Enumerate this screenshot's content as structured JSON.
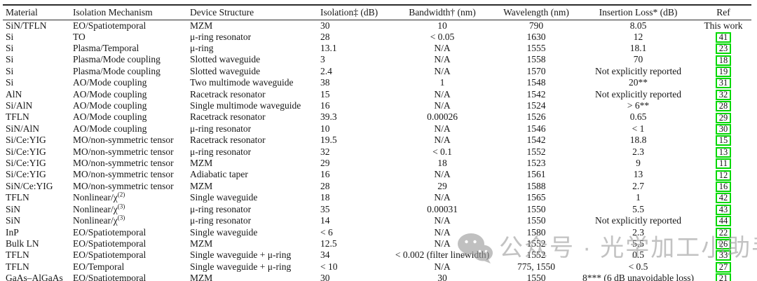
{
  "watermark": {
    "icon": "wechat-icon",
    "text": "公众号 · 光学加工小助手",
    "color": "#9d9d9d"
  },
  "table": {
    "ref_box_color": "#00d800",
    "columns": [
      "Material",
      "Isolation Mechanism",
      "Device Structure",
      "Isolation‡ (dB)",
      "Bandwidth† (nm)",
      "Wavelength (nm)",
      "Insertion Loss* (dB)",
      "Ref"
    ],
    "rows": [
      {
        "material": "SiN/TFLN",
        "mechanism": "EO/Spatiotemporal",
        "structure": "MZM",
        "isolation": "30",
        "bandwidth": "10",
        "wavelength": "790",
        "loss": "8.05",
        "ref": "This work",
        "ref_boxed": false
      },
      {
        "material": "Si",
        "mechanism": "TO",
        "structure": "μ-ring resonator",
        "isolation": "28",
        "bandwidth": "< 0.05",
        "wavelength": "1630",
        "loss": "12",
        "ref": "41",
        "ref_boxed": true
      },
      {
        "material": "Si",
        "mechanism": "Plasma/Temporal",
        "structure": "μ-ring",
        "isolation": "13.1",
        "bandwidth": "N/A",
        "wavelength": "1555",
        "loss": "18.1",
        "ref": "23",
        "ref_boxed": true
      },
      {
        "material": "Si",
        "mechanism": "Plasma/Mode coupling",
        "structure": "Slotted waveguide",
        "isolation": "3",
        "bandwidth": "N/A",
        "wavelength": "1558",
        "loss": "70",
        "ref": "18",
        "ref_boxed": true
      },
      {
        "material": "Si",
        "mechanism": "Plasma/Mode coupling",
        "structure": "Slotted waveguide",
        "isolation": "2.4",
        "bandwidth": "N/A",
        "wavelength": "1570",
        "loss": "Not explicitly reported",
        "ref": "19",
        "ref_boxed": true
      },
      {
        "material": "Si",
        "mechanism": "AO/Mode coupling",
        "structure": "Two multimode waveguide",
        "isolation": "38",
        "bandwidth": "1",
        "wavelength": "1548",
        "loss": "20**",
        "ref": "31",
        "ref_boxed": true
      },
      {
        "material": "AlN",
        "mechanism": "AO/Mode coupling",
        "structure": "Racetrack resonator",
        "isolation": "15",
        "bandwidth": "N/A",
        "wavelength": "1542",
        "loss": "Not explicitly reported",
        "ref": "32",
        "ref_boxed": true
      },
      {
        "material": "Si/AlN",
        "mechanism": "AO/Mode coupling",
        "structure": "Single multimode waveguide",
        "isolation": "16",
        "bandwidth": "N/A",
        "wavelength": "1524",
        "loss": "> 6**",
        "ref": "28",
        "ref_boxed": true
      },
      {
        "material": "TFLN",
        "mechanism": "AO/Mode coupling",
        "structure": "Racetrack resonator",
        "isolation": "39.3",
        "bandwidth": "0.00026",
        "wavelength": "1526",
        "loss": "0.65",
        "ref": "29",
        "ref_boxed": true
      },
      {
        "material": "SiN/AlN",
        "mechanism": "AO/Mode coupling",
        "structure": "μ-ring resonator",
        "isolation": "10",
        "bandwidth": "N/A",
        "wavelength": "1546",
        "loss": "< 1",
        "ref": "30",
        "ref_boxed": true
      },
      {
        "material": "Si/Ce:YIG",
        "mechanism": "MO/non-symmetric tensor",
        "structure": "Racetrack resonator",
        "isolation": "19.5",
        "bandwidth": "N/A",
        "wavelength": "1542",
        "loss": "18.8",
        "ref": "15",
        "ref_boxed": true
      },
      {
        "material": "Si/Ce:YIG",
        "mechanism": "MO/non-symmetric tensor",
        "structure": "μ-ring resonator",
        "isolation": "32",
        "bandwidth": "< 0.1",
        "wavelength": "1552",
        "loss": "2.3",
        "ref": "13",
        "ref_boxed": true
      },
      {
        "material": "Si/Ce:YIG",
        "mechanism": "MO/non-symmetric tensor",
        "structure": "MZM",
        "isolation": "29",
        "bandwidth": "18",
        "wavelength": "1523",
        "loss": "9",
        "ref": "11",
        "ref_boxed": true
      },
      {
        "material": "Si/Ce:YIG",
        "mechanism": "MO/non-symmetric tensor",
        "structure": "Adiabatic taper",
        "isolation": "16",
        "bandwidth": "N/A",
        "wavelength": "1561",
        "loss": "13",
        "ref": "12",
        "ref_boxed": true
      },
      {
        "material": "SiN/Ce:YIG",
        "mechanism": "MO/non-symmetric tensor",
        "structure": "MZM",
        "isolation": "28",
        "bandwidth": "29",
        "wavelength": "1588",
        "loss": "2.7",
        "ref": "16",
        "ref_boxed": true
      },
      {
        "material": "TFLN",
        "mechanism": "Nonlinear/χ^(2)",
        "structure": "Single waveguide",
        "isolation": "18",
        "bandwidth": "N/A",
        "wavelength": "1565",
        "loss": "1",
        "ref": "42",
        "ref_boxed": true
      },
      {
        "material": "SiN",
        "mechanism": "Nonlinear/χ^(3)",
        "structure": "μ-ring resonator",
        "isolation": "35",
        "bandwidth": "0.00031",
        "wavelength": "1550",
        "loss": "5.5",
        "ref": "43",
        "ref_boxed": true
      },
      {
        "material": "SiN",
        "mechanism": "Nonlinear/χ^(3)",
        "structure": "μ-ring resonator",
        "isolation": "14",
        "bandwidth": "N/A",
        "wavelength": "1550",
        "loss": "Not explicitly reported",
        "ref": "44",
        "ref_boxed": true
      },
      {
        "material": "InP",
        "mechanism": "EO/Spatiotemporal",
        "structure": "Single waveguide",
        "isolation": "< 6",
        "bandwidth": "N/A",
        "wavelength": "1580",
        "loss": "2.3",
        "ref": "22",
        "ref_boxed": true
      },
      {
        "material": "Bulk LN",
        "mechanism": "EO/Spatiotemporal",
        "structure": "MZM",
        "isolation": "12.5",
        "bandwidth": "N/A",
        "wavelength": "1552",
        "loss": "5.5",
        "ref": "26",
        "ref_boxed": true
      },
      {
        "material": "TFLN",
        "mechanism": "EO/Spatiotemporal",
        "structure": "Single waveguide + μ-ring",
        "isolation": "34",
        "bandwidth": "< 0.002 (filter linewidth)",
        "wavelength": "1552",
        "loss": "0.5",
        "ref": "33",
        "ref_boxed": true
      },
      {
        "material": "TFLN",
        "mechanism": "EO/Temporal",
        "structure": "Single waveguide + μ-ring",
        "isolation": "< 10",
        "bandwidth": "N/A",
        "wavelength": "775, 1550",
        "loss": "< 0.5",
        "ref": "27",
        "ref_boxed": true
      },
      {
        "material": "GaAs–AlGaAs",
        "mechanism": "EO/Spatiotemporal",
        "structure": "MZM",
        "isolation": "30",
        "bandwidth": "30",
        "wavelength": "1550",
        "loss": "8*** (6 dB unavoidable loss)",
        "ref": "21",
        "ref_boxed": true
      }
    ]
  }
}
